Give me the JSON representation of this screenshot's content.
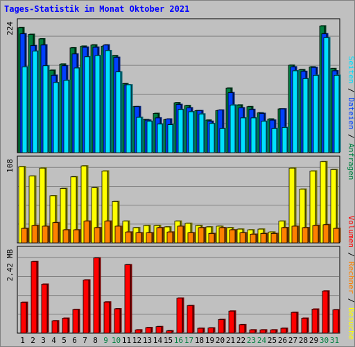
{
  "title": "Tages-Statistik im Monat Oktober 2021",
  "colors": {
    "background": "#c0c0c0",
    "title": "#0000ff",
    "anfragen": "#008040",
    "dateien": "#0040ff",
    "seiten": "#00e0ff",
    "besuche": "#ffff00",
    "rechner": "#ff8000",
    "volumen": "#ff0000",
    "weekday_label": "#000000",
    "weekend_label": "#008040"
  },
  "chart_data": [
    {
      "type": "bar",
      "panel": "top",
      "ylabel": "224",
      "ylim": [
        0,
        224
      ],
      "legend_right": [
        "Anfragen",
        "Dateien",
        "Seiten"
      ],
      "categories": [
        "1",
        "2",
        "3",
        "4",
        "5",
        "6",
        "7",
        "8",
        "9",
        "10",
        "11",
        "12",
        "13",
        "14",
        "15",
        "16",
        "17",
        "18",
        "19",
        "20",
        "21",
        "22",
        "23",
        "24",
        "25",
        "26",
        "27",
        "28",
        "29",
        "30",
        "31"
      ],
      "series": [
        {
          "name": "Anfragen",
          "values": [
            223,
            211,
            203,
            147,
            158,
            187,
            190,
            192,
            190,
            173,
            123,
            82,
            59,
            70,
            59,
            89,
            84,
            75,
            58,
            75,
            115,
            85,
            82,
            71,
            60,
            78,
            156,
            148,
            153,
            226,
            150
          ]
        },
        {
          "name": "Dateien",
          "values": [
            212,
            191,
            192,
            138,
            155,
            176,
            188,
            188,
            192,
            170,
            121,
            82,
            58,
            62,
            60,
            86,
            80,
            75,
            56,
            76,
            107,
            80,
            77,
            70,
            58,
            78,
            153,
            145,
            152,
            212,
            146
          ]
        },
        {
          "name": "Seiten",
          "values": [
            153,
            181,
            155,
            125,
            129,
            151,
            171,
            173,
            182,
            144,
            121,
            63,
            56,
            51,
            50,
            77,
            73,
            69,
            52,
            43,
            85,
            62,
            62,
            56,
            43,
            45,
            146,
            132,
            138,
            205,
            138
          ]
        }
      ]
    },
    {
      "type": "bar",
      "panel": "middle",
      "ylabel": "108",
      "ylim": [
        0,
        108
      ],
      "legend_right": [
        "Besuche",
        "Rechner"
      ],
      "categories": [
        "1",
        "2",
        "3",
        "4",
        "5",
        "6",
        "7",
        "8",
        "9",
        "10",
        "11",
        "12",
        "13",
        "14",
        "15",
        "16",
        "17",
        "18",
        "19",
        "20",
        "21",
        "22",
        "23",
        "24",
        "25",
        "26",
        "27",
        "28",
        "29",
        "30",
        "31"
      ],
      "series": [
        {
          "name": "Besuche",
          "values": [
            105,
            92,
            103,
            65,
            75,
            91,
            106,
            76,
            99,
            57,
            30,
            21,
            24,
            24,
            22,
            30,
            27,
            24,
            22,
            23,
            21,
            19,
            18,
            19,
            15,
            30,
            103,
            74,
            99,
            112,
            101
          ]
        },
        {
          "name": "Rechner",
          "values": [
            20,
            24,
            23,
            28,
            18,
            18,
            30,
            21,
            30,
            23,
            15,
            14,
            14,
            21,
            15,
            23,
            14,
            21,
            13,
            21,
            18,
            14,
            12,
            13,
            13,
            21,
            23,
            21,
            24,
            25,
            20
          ]
        }
      ]
    },
    {
      "type": "bar",
      "panel": "bottom",
      "ylabel": "2.42 MB",
      "ylim": [
        0,
        2.42
      ],
      "legend_right": [
        "Volumen"
      ],
      "categories": [
        "1",
        "2",
        "3",
        "4",
        "5",
        "6",
        "7",
        "8",
        "9",
        "10",
        "11",
        "12",
        "13",
        "14",
        "15",
        "16",
        "17",
        "18",
        "19",
        "20",
        "21",
        "22",
        "23",
        "24",
        "25",
        "26",
        "27",
        "28",
        "29",
        "30",
        "31"
      ],
      "series": [
        {
          "name": "Volumen",
          "values": [
            0.95,
            2.21,
            1.51,
            0.38,
            0.46,
            0.73,
            1.64,
            2.32,
            0.96,
            0.75,
            2.11,
            0.1,
            0.17,
            0.2,
            0.07,
            1.08,
            0.85,
            0.15,
            0.16,
            0.42,
            0.68,
            0.26,
            0.1,
            0.1,
            0.1,
            0.15,
            0.64,
            0.46,
            0.74,
            1.3,
            0.72
          ]
        }
      ]
    }
  ],
  "weekend_days": [
    "9",
    "10",
    "16",
    "17",
    "23",
    "24",
    "30",
    "31"
  ],
  "legend": {
    "anfragen": "Anfragen",
    "dateien": "Dateien",
    "seiten": "Seiten",
    "besuche": "Besuche",
    "rechner": "Rechner",
    "volumen": "Volumen",
    "separator": "/"
  }
}
